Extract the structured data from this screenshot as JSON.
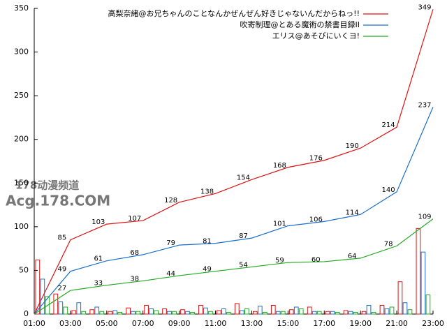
{
  "chart_data": {
    "type": "line",
    "x": [
      1,
      3,
      5,
      7,
      9,
      11,
      13,
      15,
      17,
      19,
      21,
      23
    ],
    "xlim": [
      1,
      23
    ],
    "xticks": [
      {
        "value": 1,
        "label": "01:00"
      },
      {
        "value": 3,
        "label": "03:00"
      },
      {
        "value": 5,
        "label": "05:00"
      },
      {
        "value": 7,
        "label": "07:00"
      },
      {
        "value": 9,
        "label": "09:00"
      },
      {
        "value": 11,
        "label": "11:00"
      },
      {
        "value": 13,
        "label": "13:00"
      },
      {
        "value": 15,
        "label": "15:00"
      },
      {
        "value": 17,
        "label": "17:00"
      },
      {
        "value": 19,
        "label": "19:00"
      },
      {
        "value": 21,
        "label": "21:00"
      },
      {
        "value": 23,
        "label": "23:00"
      }
    ],
    "ylim": [
      0,
      350
    ],
    "yticks": [
      0,
      50,
      100,
      150,
      200,
      250,
      300,
      350
    ],
    "grid": false,
    "legend": "top-right",
    "bar_x": [
      1,
      2,
      3,
      4,
      5,
      6,
      7,
      8,
      9,
      10,
      11,
      12,
      13,
      14,
      15,
      16,
      17,
      18,
      19,
      20,
      21,
      22
    ],
    "series": [
      {
        "name": "高梨奈緒@お兄ちゃんのことなんかぜんぜん好きじゃないんだからねっ!!",
        "color": "#dd1111",
        "values": [
          0,
          85,
          103,
          107,
          128,
          138,
          154,
          168,
          176,
          190,
          214,
          349
        ],
        "bar_values": [
          62,
          23,
          4,
          5,
          3,
          7,
          10,
          6,
          5,
          10,
          4,
          12,
          3,
          10,
          5,
          8,
          3,
          4,
          3,
          10,
          37,
          98
        ]
      },
      {
        "name": "吹寄制理@とある魔術の禁書目録II",
        "color": "#1c6fcc",
        "values": [
          0,
          49,
          61,
          68,
          79,
          81,
          87,
          101,
          106,
          114,
          140,
          237
        ],
        "bar_values": [
          40,
          14,
          13,
          8,
          4,
          3,
          6,
          3,
          3,
          7,
          6,
          4,
          9,
          3,
          8,
          3,
          3,
          3,
          10,
          6,
          13,
          71
        ]
      },
      {
        "name": "エリス@あそびにいくヨ!",
        "color": "#22aa22",
        "values": [
          0,
          27,
          33,
          38,
          44,
          49,
          54,
          59,
          60,
          64,
          78,
          109
        ],
        "bar_values": [
          20,
          8,
          3,
          3,
          2,
          3,
          4,
          3,
          2,
          3,
          2,
          6,
          2,
          3,
          6,
          3,
          2,
          2,
          2,
          8,
          5,
          22
        ]
      }
    ],
    "annotations": [
      "178动漫频道",
      "Acg.178.COM"
    ]
  }
}
